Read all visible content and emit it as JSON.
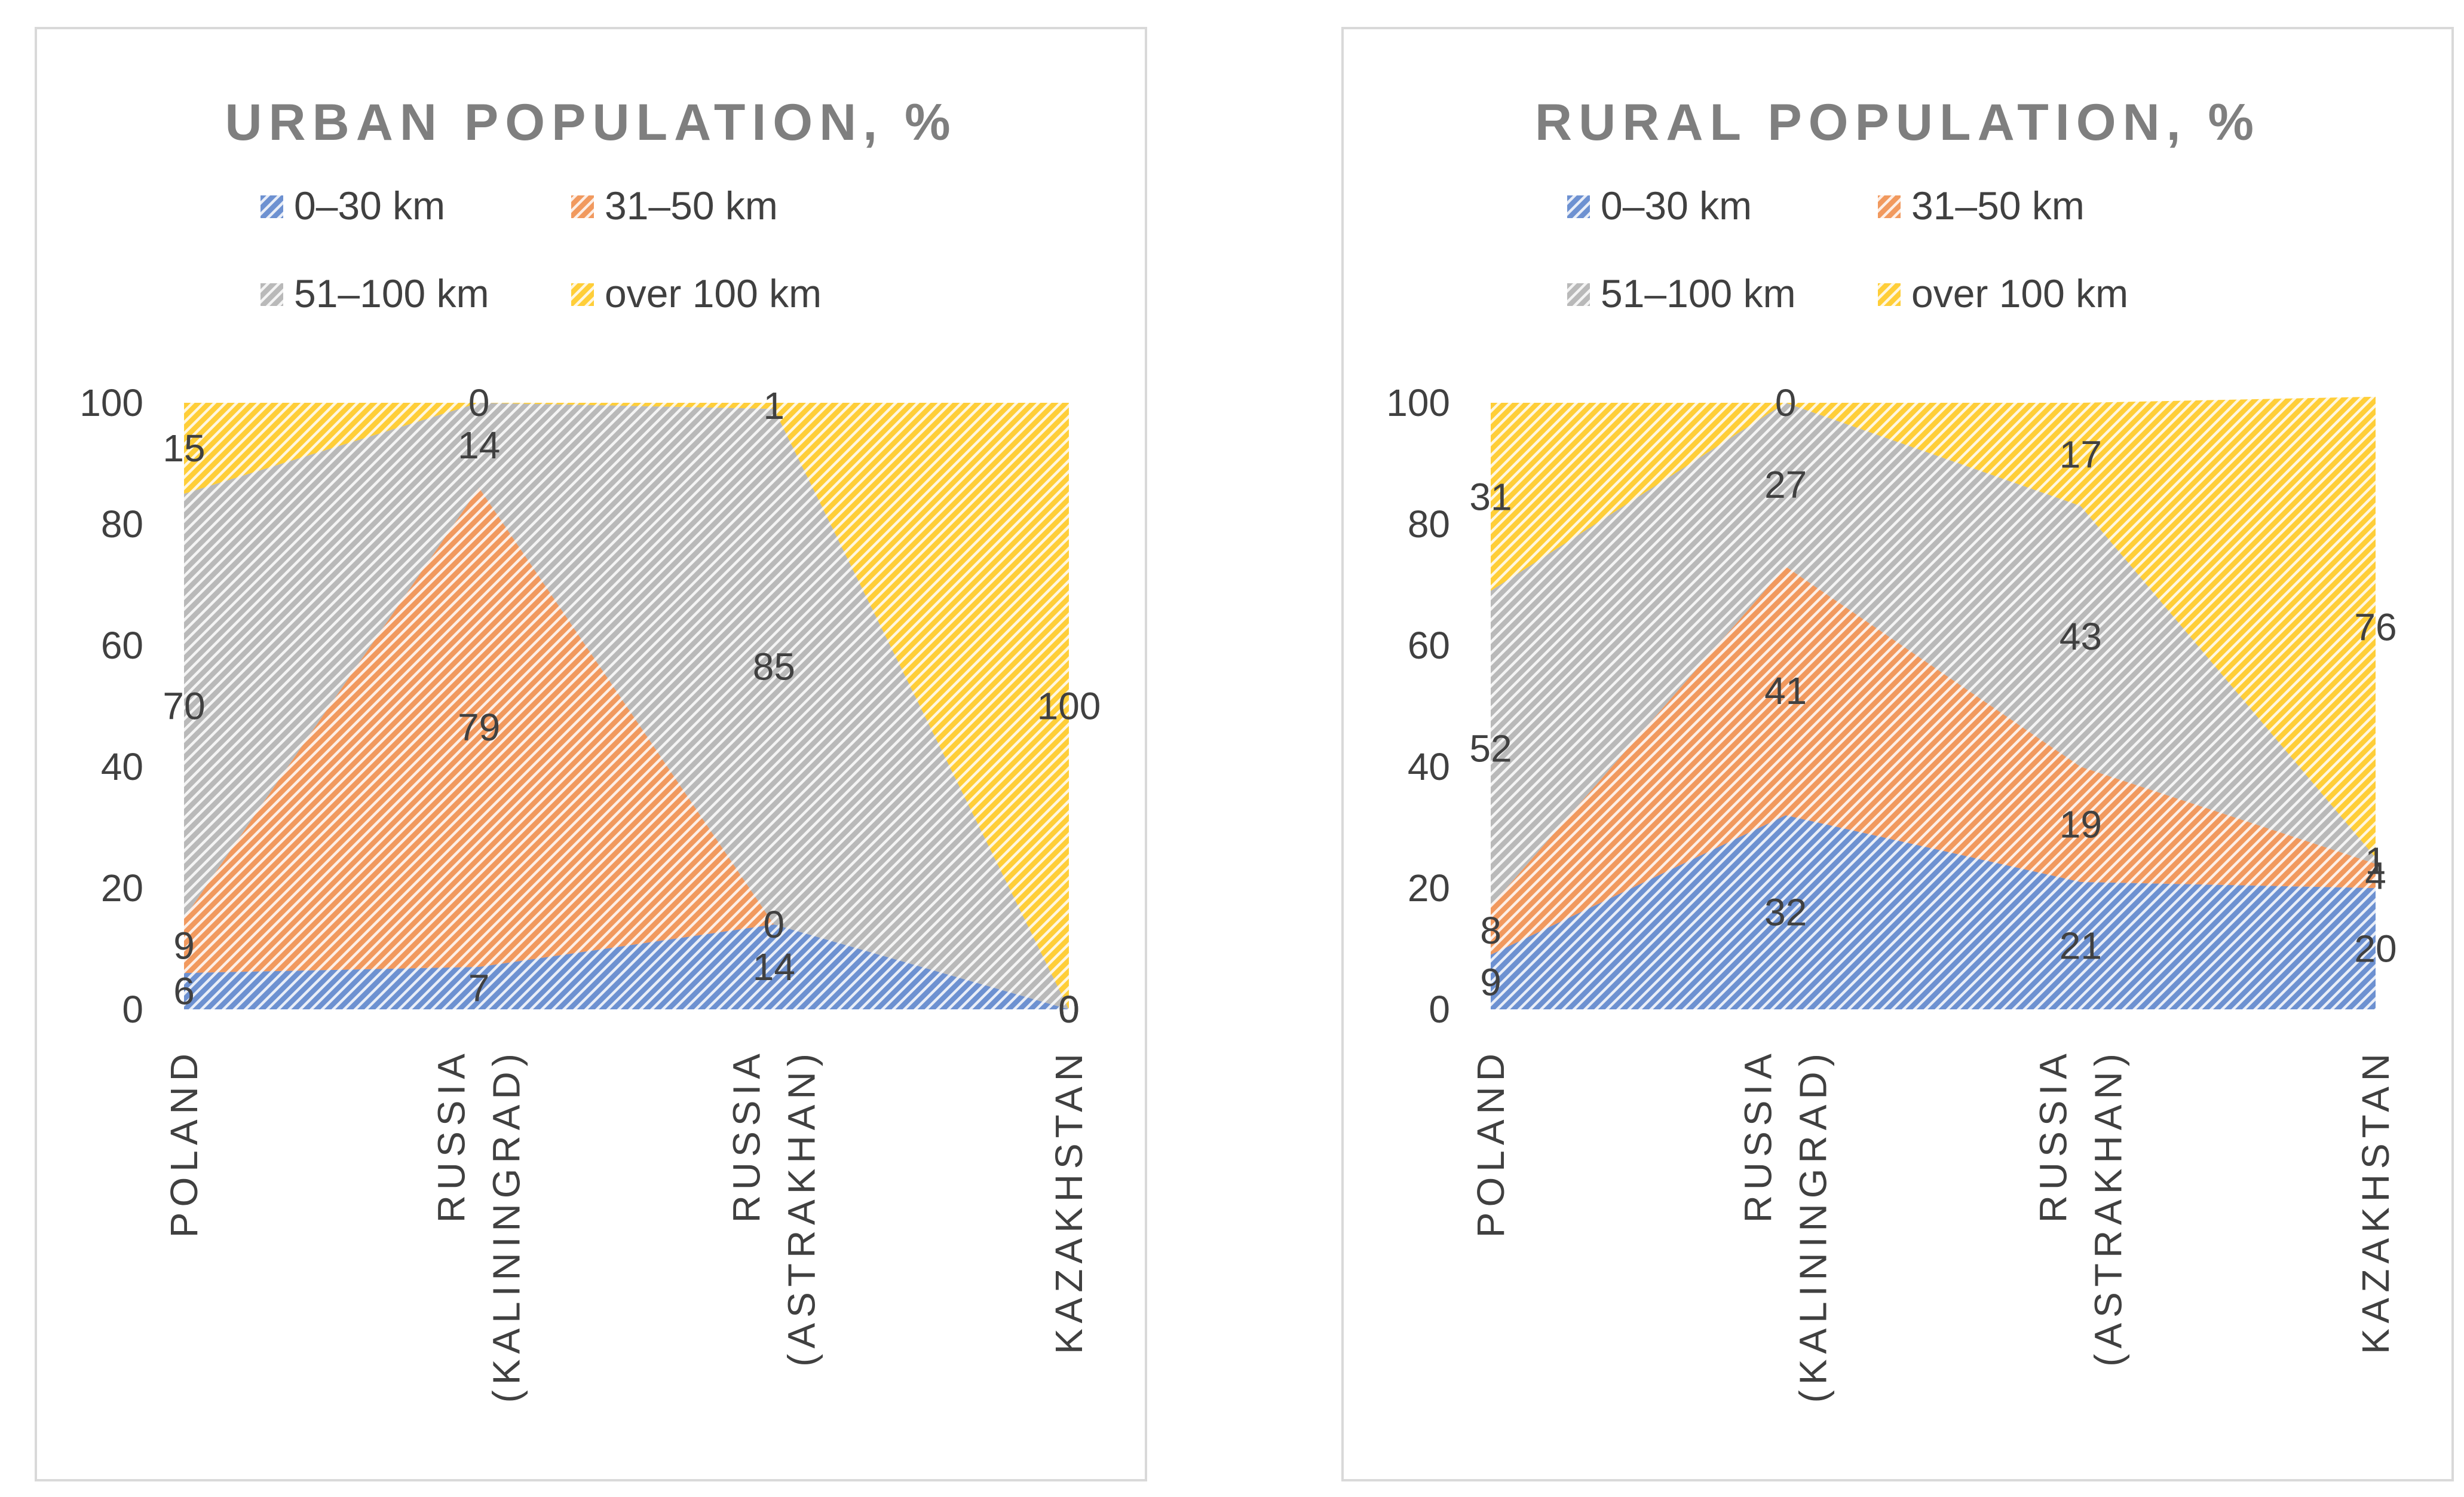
{
  "colors": {
    "s0": "#4472c4",
    "s1": "#ed7d31",
    "s2": "#a5a5a5",
    "s3": "#ffc000",
    "text": "#404040",
    "title": "#7f7f7f"
  },
  "chart_data": [
    {
      "type": "area",
      "stacked": true,
      "title": "URBAN POPULATION, %",
      "categories": [
        [
          "POLAND"
        ],
        [
          "RUSSIA",
          "(KALININGRAD)"
        ],
        [
          "RUSSIA",
          "(ASTRAKHAN)"
        ],
        [
          "KAZAKHSTAN"
        ]
      ],
      "series": [
        {
          "name": "0–30 km",
          "values": [
            6,
            7,
            14,
            0
          ]
        },
        {
          "name": "31–50 km",
          "values": [
            9,
            79,
            0,
            0
          ]
        },
        {
          "name": "51–100 km",
          "values": [
            70,
            14,
            85,
            0
          ]
        },
        {
          "name": "over 100 km",
          "values": [
            15,
            0,
            1,
            100
          ]
        }
      ],
      "ylim": [
        0,
        100
      ],
      "yticks": [
        0,
        20,
        40,
        60,
        80,
        100
      ],
      "grid": false,
      "legend": "top"
    },
    {
      "type": "area",
      "stacked": true,
      "title": "RURAL POPULATION, %",
      "categories": [
        [
          "POLAND"
        ],
        [
          "RUSSIA",
          "(KALININGRAD)"
        ],
        [
          "RUSSIA",
          "(ASTRAKHAN)"
        ],
        [
          "KAZAKHSTAN"
        ]
      ],
      "series": [
        {
          "name": "0–30 km",
          "values": [
            9,
            32,
            21,
            20
          ]
        },
        {
          "name": "31–50 km",
          "values": [
            8,
            41,
            19,
            4
          ]
        },
        {
          "name": "51–100 km",
          "values": [
            52,
            27,
            43,
            1
          ]
        },
        {
          "name": "over 100 km",
          "values": [
            31,
            0,
            17,
            76
          ]
        }
      ],
      "ylim": [
        0,
        100
      ],
      "yticks": [
        0,
        20,
        40,
        60,
        80,
        100
      ],
      "grid": false,
      "legend": "top"
    }
  ]
}
